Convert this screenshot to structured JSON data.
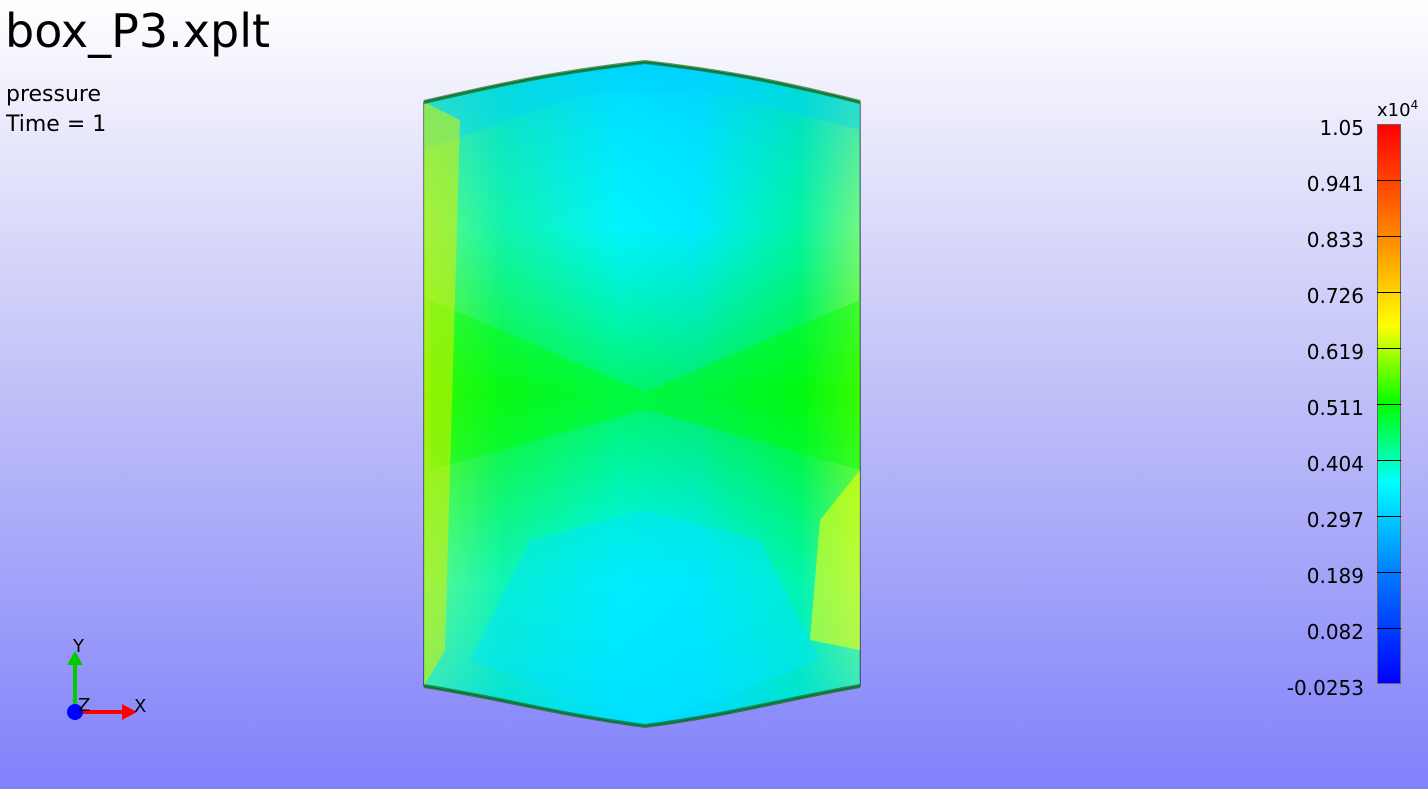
{
  "window": {
    "file_title": "box_P3.xplt",
    "variable": "pressure",
    "time_label": "Time = 1"
  },
  "legend": {
    "scale_label": "x10",
    "scale_exponent": "4",
    "ticks": [
      "1.05",
      "0.941",
      "0.833",
      "0.726",
      "0.619",
      "0.511",
      "0.404",
      "0.297",
      "0.189",
      "0.082",
      "-0.0253"
    ],
    "colors": [
      "#ff0000",
      "#ff7a00",
      "#ffff00",
      "#00ff00",
      "#00ffff",
      "#0070ff",
      "#0000ff"
    ]
  },
  "triad": {
    "x_label": "X",
    "y_label": "Y",
    "z_label": "Z",
    "x_color": "#ff0000",
    "y_color": "#00cc00",
    "z_color": "#0000ff"
  }
}
